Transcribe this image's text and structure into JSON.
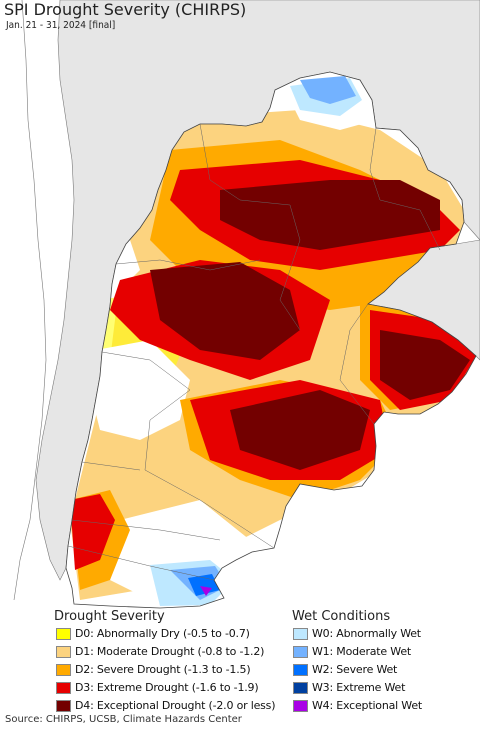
{
  "title": "SPI Drought Severity (CHIRPS)",
  "subtitle": "Jan. 21 - 31, 2024 [final]",
  "drought_legend": {
    "heading": "Drought Severity",
    "items": [
      {
        "label": "D0: Abnormally Dry (-0.5 to -0.7)",
        "color": "#ffff00"
      },
      {
        "label": "D1: Moderate Drought (-0.8 to -1.2)",
        "color": "#fcd37f"
      },
      {
        "label": "D2: Severe Drought (-1.3 to -1.5)",
        "color": "#ffaa00"
      },
      {
        "label": "D3: Extreme Drought (-1.6 to -1.9)",
        "color": "#e60000"
      },
      {
        "label": "D4: Exceptional Drought (-2.0 or less)",
        "color": "#730000"
      }
    ]
  },
  "wet_legend": {
    "heading": "Wet Conditions",
    "items": [
      {
        "label": "W0: Abnormally Wet",
        "color": "#bee8ff"
      },
      {
        "label": "W1: Moderate Wet",
        "color": "#73b2ff"
      },
      {
        "label": "W2: Severe Wet",
        "color": "#0070ff"
      },
      {
        "label": "W3: Extreme Wet",
        "color": "#0040a0"
      },
      {
        "label": "W4: Exceptional Wet",
        "color": "#a900e6"
      }
    ]
  },
  "source": "Source: CHIRPS, UCSB, Climate Hazards Center",
  "colors": {
    "ocean": "#ffffff",
    "outside_land": "#e6e6e6",
    "border": "#555555"
  }
}
